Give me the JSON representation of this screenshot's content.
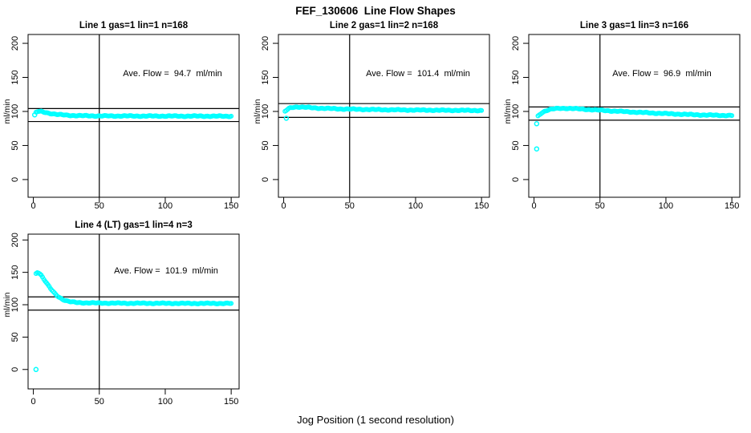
{
  "page_title": "FEF_130606  Line Flow Shapes",
  "xlabel": "Jog Position (1 second resolution)",
  "colors": {
    "points": "#00FFFF",
    "axis": "#000000",
    "background": "#FFFFFF"
  },
  "chart_data": [
    {
      "type": "scatter",
      "title": "Line 1 gas=1 lin=1 n=168",
      "ave_flow": 94.7,
      "ave_flow_label": "Ave. Flow =  94.7  ml/min",
      "ylabel": "ml/min",
      "x_ticks": [
        0,
        50,
        100,
        150
      ],
      "y_ticks": [
        0,
        50,
        100,
        150,
        200
      ],
      "xlim": [
        -4,
        156
      ],
      "ylim": [
        -26,
        213
      ],
      "vline_x": 50,
      "hlines": [
        104.2,
        85.2
      ],
      "marker": "open-circle",
      "grid": false,
      "points": [
        [
          2,
          98.5
        ],
        [
          3,
          99.5
        ],
        [
          4,
          100
        ],
        [
          6,
          99.8
        ],
        [
          8,
          99
        ],
        [
          10,
          98.2
        ],
        [
          12,
          97.4
        ],
        [
          14,
          96.7
        ],
        [
          16,
          96.1
        ],
        [
          18,
          95.6
        ],
        [
          20,
          95.2
        ],
        [
          23,
          94.8
        ],
        [
          26,
          94.4
        ],
        [
          30,
          94
        ],
        [
          35,
          93.8
        ],
        [
          40,
          93.6
        ],
        [
          45,
          93.5
        ],
        [
          50,
          93.4
        ],
        [
          60,
          93.3
        ],
        [
          70,
          93.3
        ],
        [
          80,
          93.2
        ],
        [
          90,
          93.2
        ],
        [
          100,
          93.2
        ],
        [
          110,
          93.1
        ],
        [
          120,
          93.1
        ],
        [
          130,
          93.1
        ],
        [
          140,
          93
        ],
        [
          150,
          93
        ]
      ],
      "outliers": [
        [
          1,
          95
        ]
      ]
    },
    {
      "type": "scatter",
      "title": "Line 2 gas=1 lin=2 n=168",
      "ave_flow": 101.4,
      "ave_flow_label": "Ave. Flow =  101.4  ml/min",
      "ylabel": "ml/min",
      "x_ticks": [
        0,
        50,
        100,
        150
      ],
      "y_ticks": [
        0,
        50,
        100,
        150,
        200
      ],
      "xlim": [
        -4,
        156
      ],
      "ylim": [
        -26,
        213
      ],
      "vline_x": 50,
      "hlines": [
        111.5,
        91.3
      ],
      "marker": "open-circle",
      "grid": false,
      "points": [
        [
          1,
          100
        ],
        [
          2,
          101.5
        ],
        [
          3,
          103
        ],
        [
          4,
          104.3
        ],
        [
          5,
          105.2
        ],
        [
          6,
          105.8
        ],
        [
          8,
          106.4
        ],
        [
          10,
          106.6
        ],
        [
          12,
          106.5
        ],
        [
          14,
          106.3
        ],
        [
          16,
          106.1
        ],
        [
          18,
          105.9
        ],
        [
          20,
          105.6
        ],
        [
          25,
          105
        ],
        [
          30,
          104.6
        ],
        [
          35,
          104.2
        ],
        [
          40,
          103.9
        ],
        [
          45,
          103.6
        ],
        [
          50,
          103.4
        ],
        [
          60,
          103
        ],
        [
          70,
          102.7
        ],
        [
          80,
          102.4
        ],
        [
          90,
          102.2
        ],
        [
          100,
          102
        ],
        [
          110,
          101.9
        ],
        [
          120,
          101.7
        ],
        [
          130,
          101.6
        ],
        [
          140,
          101.5
        ],
        [
          150,
          101.4
        ]
      ],
      "outliers": [
        [
          2,
          90
        ]
      ]
    },
    {
      "type": "scatter",
      "title": "Line 3 gas=1 lin=3 n=166",
      "ave_flow": 96.9,
      "ave_flow_label": "Ave. Flow =  96.9  ml/min",
      "ylabel": "ml/min",
      "x_ticks": [
        0,
        50,
        100,
        150
      ],
      "y_ticks": [
        0,
        50,
        100,
        150,
        200
      ],
      "xlim": [
        -4,
        156
      ],
      "ylim": [
        -26,
        213
      ],
      "vline_x": 50,
      "hlines": [
        106.6,
        87.2
      ],
      "marker": "open-circle",
      "grid": false,
      "points": [
        [
          3,
          93
        ],
        [
          4,
          95
        ],
        [
          5,
          96.8
        ],
        [
          6,
          98.2
        ],
        [
          8,
          100.3
        ],
        [
          10,
          101.8
        ],
        [
          12,
          102.8
        ],
        [
          14,
          103.5
        ],
        [
          16,
          104
        ],
        [
          18,
          104.3
        ],
        [
          20,
          104.5
        ],
        [
          23,
          104.6
        ],
        [
          26,
          104.5
        ],
        [
          30,
          104.2
        ],
        [
          35,
          103.6
        ],
        [
          40,
          103
        ],
        [
          45,
          102.4
        ],
        [
          50,
          101.8
        ],
        [
          55,
          101.2
        ],
        [
          60,
          100.6
        ],
        [
          70,
          99.6
        ],
        [
          80,
          98.6
        ],
        [
          90,
          97.7
        ],
        [
          100,
          96.8
        ],
        [
          110,
          96
        ],
        [
          120,
          95.3
        ],
        [
          130,
          94.7
        ],
        [
          140,
          94.3
        ],
        [
          150,
          94
        ]
      ],
      "outliers": [
        [
          2,
          45
        ],
        [
          2,
          82
        ]
      ]
    },
    {
      "type": "scatter",
      "title": "Line 4 (LT) gas=1 lin=4 n=3",
      "ave_flow": 101.9,
      "ave_flow_label": "Ave. Flow =  101.9  ml/min",
      "ylabel": "ml/min",
      "x_ticks": [
        0,
        50,
        100,
        150
      ],
      "y_ticks": [
        0,
        50,
        100,
        150,
        200
      ],
      "xlim": [
        -4,
        156
      ],
      "ylim": [
        -30,
        209
      ],
      "vline_x": 50,
      "hlines": [
        112.1,
        91.7
      ],
      "marker": "open-circle",
      "grid": false,
      "points": [
        [
          2,
          148
        ],
        [
          3,
          150
        ],
        [
          4,
          149.5
        ],
        [
          5,
          148
        ],
        [
          6,
          145.5
        ],
        [
          7,
          142.5
        ],
        [
          8,
          139.5
        ],
        [
          9,
          136.5
        ],
        [
          10,
          133.5
        ],
        [
          11,
          130.5
        ],
        [
          12,
          127.8
        ],
        [
          13,
          125
        ],
        [
          14,
          122.5
        ],
        [
          15,
          120
        ],
        [
          16,
          117.8
        ],
        [
          17,
          115.8
        ],
        [
          18,
          114
        ],
        [
          19,
          112.4
        ],
        [
          20,
          111
        ],
        [
          22,
          108.6
        ],
        [
          24,
          106.8
        ],
        [
          26,
          105.5
        ],
        [
          28,
          104.6
        ],
        [
          30,
          104
        ],
        [
          33,
          103.4
        ],
        [
          36,
          103.1
        ],
        [
          40,
          102.9
        ],
        [
          45,
          102.7
        ],
        [
          50,
          102.6
        ],
        [
          60,
          102.4
        ],
        [
          70,
          102.3
        ],
        [
          80,
          102.2
        ],
        [
          90,
          102.2
        ],
        [
          100,
          102.1
        ],
        [
          110,
          102.1
        ],
        [
          120,
          102
        ],
        [
          130,
          102
        ],
        [
          140,
          102
        ],
        [
          150,
          102
        ]
      ],
      "outliers": [
        [
          2,
          0
        ]
      ]
    }
  ]
}
